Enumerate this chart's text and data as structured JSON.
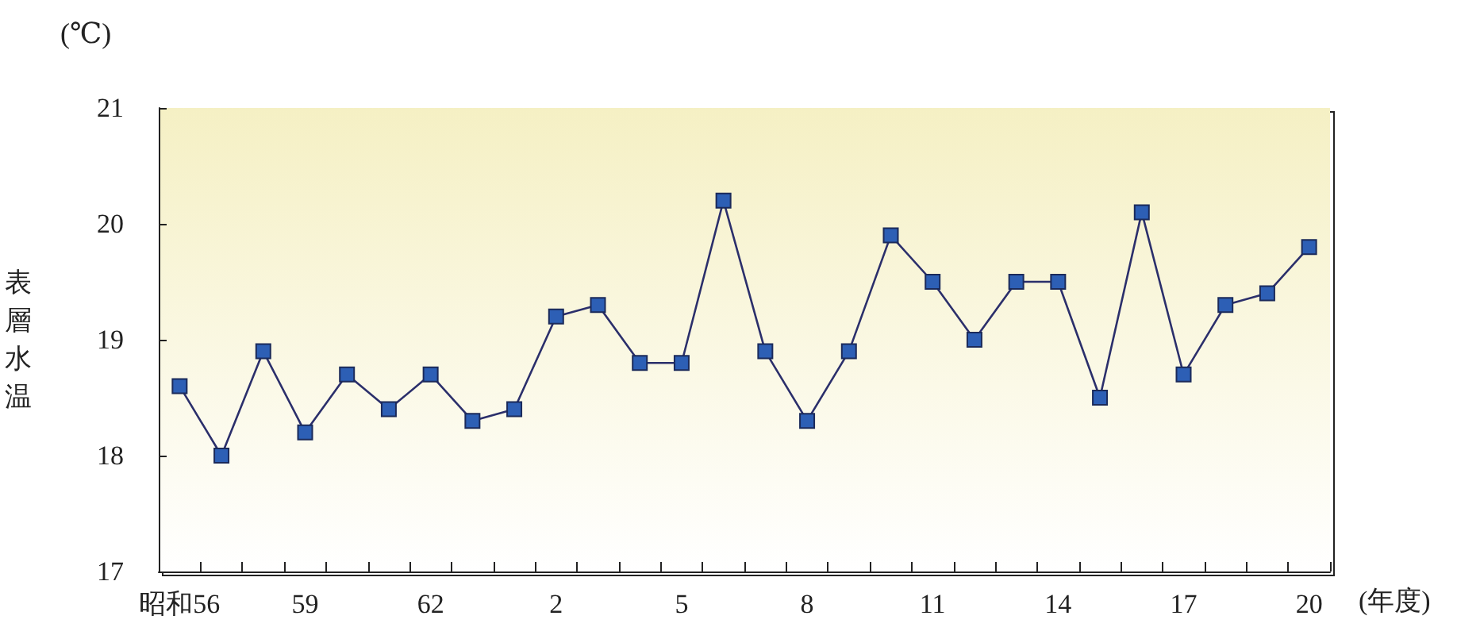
{
  "chart_data": {
    "type": "line",
    "ylabel": "表層水温",
    "xlabel": "(年度)",
    "annotations": [
      "(℃)"
    ],
    "categories": [
      "昭和56",
      null,
      null,
      "59",
      null,
      null,
      "62",
      null,
      null,
      "2",
      null,
      null,
      "5",
      null,
      null,
      "8",
      null,
      null,
      "11",
      null,
      null,
      "14",
      null,
      null,
      "17",
      null,
      null,
      "20"
    ],
    "series": [
      {
        "color": "#2d5fb5",
        "values": [
          18.6,
          18.0,
          18.9,
          18.2,
          18.7,
          18.4,
          18.7,
          18.3,
          18.4,
          19.2,
          19.3,
          18.8,
          18.8,
          20.2,
          18.9,
          18.3,
          18.9,
          19.9,
          19.5,
          19.0,
          19.5,
          19.5,
          18.5,
          20.1,
          18.7,
          19.3,
          19.4,
          19.8
        ]
      }
    ],
    "ylim": [
      17,
      21
    ],
    "yticks": [
      17,
      18,
      19,
      20,
      21
    ],
    "grid": false,
    "marker": "square",
    "line_style": "solid"
  }
}
